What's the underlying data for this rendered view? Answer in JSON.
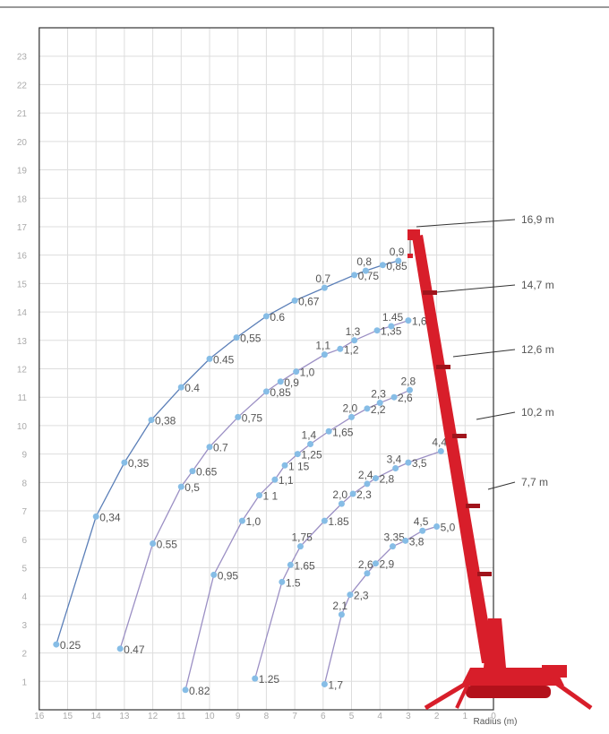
{
  "chart_data": {
    "type": "line",
    "x_label": "Radius (m)",
    "xlim": [
      16,
      0
    ],
    "ylim": [
      0,
      24
    ],
    "xticks": [
      16,
      15,
      14,
      13,
      12,
      11,
      10,
      9,
      8,
      7,
      6,
      5,
      4,
      3,
      2,
      1,
      0
    ],
    "yticks": [
      1,
      2,
      3,
      4,
      5,
      6,
      7,
      8,
      9,
      10,
      11,
      12,
      13,
      14,
      15,
      16,
      17,
      18,
      19,
      20,
      21,
      22,
      23
    ],
    "grid": true,
    "series": [
      {
        "name": "16,9 m",
        "color": "#5b7fb8",
        "points": [
          {
            "r": 15.4,
            "h": 2.3,
            "load": "0.25"
          },
          {
            "r": 14.0,
            "h": 6.8,
            "load": "0,34"
          },
          {
            "r": 13.0,
            "h": 8.7,
            "load": "0,35"
          },
          {
            "r": 12.05,
            "h": 10.2,
            "load": "0,38"
          },
          {
            "r": 11.0,
            "h": 11.35,
            "load": "0.4"
          },
          {
            "r": 10.0,
            "h": 12.35,
            "load": "0.45"
          },
          {
            "r": 9.05,
            "h": 13.1,
            "load": "0,55"
          },
          {
            "r": 8.0,
            "h": 13.85,
            "load": "0.6"
          },
          {
            "r": 7.0,
            "h": 14.4,
            "load": "0,67"
          },
          {
            "r": 5.95,
            "h": 14.85,
            "load": "0,7"
          },
          {
            "r": 4.9,
            "h": 15.3,
            "load": "0,75"
          },
          {
            "r": 4.5,
            "h": 15.45,
            "load": "0,8"
          },
          {
            "r": 3.9,
            "h": 15.65,
            "load": "0,85"
          },
          {
            "r": 3.35,
            "h": 15.8,
            "load": "0,9"
          }
        ]
      },
      {
        "name": "14,7 m",
        "color": "#9b8fc4",
        "points": [
          {
            "r": 13.15,
            "h": 2.15,
            "load": "0.47"
          },
          {
            "r": 12.0,
            "h": 5.85,
            "load": "0.55"
          },
          {
            "r": 11.0,
            "h": 7.85,
            "load": "0,5"
          },
          {
            "r": 10.6,
            "h": 8.4,
            "load": "0.65"
          },
          {
            "r": 10.0,
            "h": 9.25,
            "load": "0.7"
          },
          {
            "r": 9.0,
            "h": 10.3,
            "load": "0,75"
          },
          {
            "r": 8.0,
            "h": 11.2,
            "load": "0,85"
          },
          {
            "r": 7.5,
            "h": 11.55,
            "load": "0,9"
          },
          {
            "r": 6.95,
            "h": 11.9,
            "load": "1,0"
          },
          {
            "r": 5.95,
            "h": 12.5,
            "load": "1,1"
          },
          {
            "r": 5.4,
            "h": 12.7,
            "load": "1,2"
          },
          {
            "r": 4.9,
            "h": 13.0,
            "load": "1,3"
          },
          {
            "r": 4.1,
            "h": 13.35,
            "load": "1,35"
          },
          {
            "r": 3.6,
            "h": 13.5,
            "load": "1.45"
          },
          {
            "r": 3.0,
            "h": 13.7,
            "load": "1,6"
          }
        ]
      },
      {
        "name": "12,6 m",
        "color": "#9b8fc4",
        "points": [
          {
            "r": 10.85,
            "h": 0.7,
            "load": "0.82"
          },
          {
            "r": 9.85,
            "h": 4.75,
            "load": "0,95"
          },
          {
            "r": 8.85,
            "h": 6.65,
            "load": "1,0"
          },
          {
            "r": 8.25,
            "h": 7.55,
            "load": "1 1"
          },
          {
            "r": 7.7,
            "h": 8.1,
            "load": "1,1"
          },
          {
            "r": 7.35,
            "h": 8.6,
            "load": "1 15"
          },
          {
            "r": 6.9,
            "h": 9.0,
            "load": "1,25"
          },
          {
            "r": 6.45,
            "h": 9.35,
            "load": "1,4"
          },
          {
            "r": 5.8,
            "h": 9.8,
            "load": "1,65"
          },
          {
            "r": 5.0,
            "h": 10.3,
            "load": "2,0"
          },
          {
            "r": 4.45,
            "h": 10.6,
            "load": "2,2"
          },
          {
            "r": 4.0,
            "h": 10.8,
            "load": "2,3"
          },
          {
            "r": 3.5,
            "h": 11.0,
            "load": "2,6"
          },
          {
            "r": 2.95,
            "h": 11.25,
            "load": "2,8"
          }
        ]
      },
      {
        "name": "10,2 m",
        "color": "#9b8fc4",
        "points": [
          {
            "r": 8.4,
            "h": 1.1,
            "load": "1.25"
          },
          {
            "r": 7.45,
            "h": 4.5,
            "load": "1.5"
          },
          {
            "r": 7.15,
            "h": 5.1,
            "load": "1.65"
          },
          {
            "r": 6.8,
            "h": 5.75,
            "load": "1,75"
          },
          {
            "r": 5.95,
            "h": 6.65,
            "load": "1.85"
          },
          {
            "r": 5.35,
            "h": 7.25,
            "load": "2,0"
          },
          {
            "r": 4.95,
            "h": 7.6,
            "load": "2,3"
          },
          {
            "r": 4.45,
            "h": 7.95,
            "load": "2,4"
          },
          {
            "r": 4.15,
            "h": 8.15,
            "load": "2,8"
          },
          {
            "r": 3.45,
            "h": 8.5,
            "load": "3,4"
          },
          {
            "r": 3.0,
            "h": 8.7,
            "load": "3,5"
          },
          {
            "r": 1.85,
            "h": 9.1,
            "load": "4,4"
          }
        ]
      },
      {
        "name": "7,7 m",
        "color": "#9b8fc4",
        "points": [
          {
            "r": 5.95,
            "h": 0.9,
            "load": "1,7"
          },
          {
            "r": 5.35,
            "h": 3.35,
            "load": "2,1"
          },
          {
            "r": 5.05,
            "h": 4.05,
            "load": "2,3"
          },
          {
            "r": 4.45,
            "h": 4.8,
            "load": "2,6"
          },
          {
            "r": 4.15,
            "h": 5.15,
            "load": "2,9"
          },
          {
            "r": 3.55,
            "h": 5.75,
            "load": "3.35"
          },
          {
            "r": 3.1,
            "h": 5.95,
            "load": "3,8"
          },
          {
            "r": 2.5,
            "h": 6.3,
            "load": "4,5"
          },
          {
            "r": 2.0,
            "h": 6.45,
            "load": "5,0"
          }
        ]
      }
    ]
  }
}
